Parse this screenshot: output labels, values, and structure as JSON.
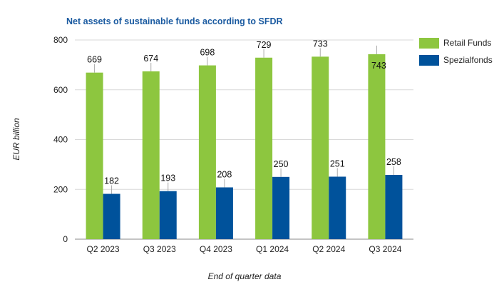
{
  "colors": {
    "retail": "#8dc63f",
    "spezial": "#00529b",
    "title": "#1a5aa0",
    "grid": "#d9d9d9"
  },
  "chart_data": {
    "type": "bar",
    "title": "Net assets of sustainable funds according to SFDR",
    "xlabel": "End of quarter data",
    "ylabel": "EUR billion",
    "categories": [
      "Q2 2023",
      "Q3 2023",
      "Q4 2023",
      "Q1 2024",
      "Q2 2024",
      "Q3 2024"
    ],
    "ylim": [
      0,
      800
    ],
    "yticks": [
      0,
      200,
      400,
      600,
      800
    ],
    "grid": true,
    "legend_position": "top-right",
    "series": [
      {
        "name": "Retail Funds",
        "color": "#8dc63f",
        "values": [
          669,
          674,
          698,
          729,
          733,
          743
        ]
      },
      {
        "name": "Spezialfonds",
        "color": "#00529b",
        "values": [
          182,
          193,
          208,
          250,
          251,
          258
        ]
      }
    ]
  }
}
